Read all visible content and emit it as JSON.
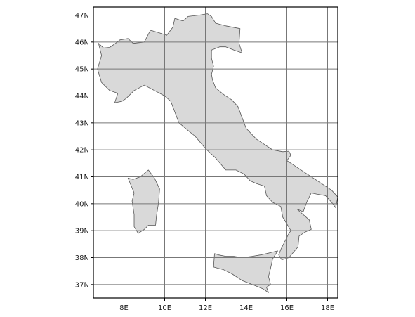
{
  "chart_data": {
    "type": "map",
    "region": "Italy",
    "projection": "equirectangular",
    "grid": true,
    "xlim": [
      6.5,
      18.5
    ],
    "ylim": [
      36.5,
      47.3
    ],
    "x_ticks": [
      {
        "value": 8,
        "label": "8E"
      },
      {
        "value": 10,
        "label": "10E"
      },
      {
        "value": 12,
        "label": "12E"
      },
      {
        "value": 14,
        "label": "14E"
      },
      {
        "value": 16,
        "label": "16E"
      },
      {
        "value": 18,
        "label": "18E"
      }
    ],
    "y_ticks": [
      {
        "value": 37,
        "label": "37N"
      },
      {
        "value": 38,
        "label": "38N"
      },
      {
        "value": 39,
        "label": "39N"
      },
      {
        "value": 40,
        "label": "40N"
      },
      {
        "value": 41,
        "label": "41N"
      },
      {
        "value": 42,
        "label": "42N"
      },
      {
        "value": 43,
        "label": "43N"
      },
      {
        "value": 44,
        "label": "44N"
      },
      {
        "value": 45,
        "label": "45N"
      },
      {
        "value": 46,
        "label": "46N"
      },
      {
        "value": 47,
        "label": "47N"
      }
    ],
    "colors": {
      "land_fill": "#d9d9d9",
      "land_stroke": "#555555",
      "grid": "#777777",
      "frame": "#000000"
    },
    "polygons": [
      {
        "id": "mainland",
        "coords": [
          [
            6.75,
            45.95
          ],
          [
            7.0,
            45.78
          ],
          [
            7.3,
            45.8
          ],
          [
            7.6,
            45.96
          ],
          [
            7.8,
            46.08
          ],
          [
            8.2,
            46.13
          ],
          [
            8.45,
            45.95
          ],
          [
            8.8,
            45.98
          ],
          [
            9.0,
            46.0
          ],
          [
            9.3,
            46.44
          ],
          [
            9.7,
            46.35
          ],
          [
            10.1,
            46.25
          ],
          [
            10.4,
            46.55
          ],
          [
            10.5,
            46.88
          ],
          [
            10.9,
            46.78
          ],
          [
            11.15,
            46.95
          ],
          [
            11.7,
            47.0
          ],
          [
            12.1,
            47.05
          ],
          [
            12.3,
            46.95
          ],
          [
            12.5,
            46.7
          ],
          [
            13.0,
            46.6
          ],
          [
            13.7,
            46.5
          ],
          [
            13.65,
            45.95
          ],
          [
            13.8,
            45.6
          ],
          [
            13.4,
            45.7
          ],
          [
            13.0,
            45.82
          ],
          [
            12.7,
            45.82
          ],
          [
            12.3,
            45.7
          ],
          [
            12.3,
            45.4
          ],
          [
            12.4,
            45.1
          ],
          [
            12.3,
            44.8
          ],
          [
            12.35,
            44.6
          ],
          [
            12.5,
            44.3
          ],
          [
            12.9,
            44.05
          ],
          [
            13.3,
            43.85
          ],
          [
            13.6,
            43.6
          ],
          [
            13.8,
            43.2
          ],
          [
            14.0,
            42.8
          ],
          [
            14.5,
            42.4
          ],
          [
            15.0,
            42.15
          ],
          [
            15.3,
            42.0
          ],
          [
            15.8,
            41.93
          ],
          [
            16.1,
            41.95
          ],
          [
            16.2,
            41.8
          ],
          [
            16.0,
            41.6
          ],
          [
            16.3,
            41.45
          ],
          [
            16.7,
            41.25
          ],
          [
            17.1,
            41.05
          ],
          [
            17.5,
            40.85
          ],
          [
            17.9,
            40.65
          ],
          [
            18.2,
            40.5
          ],
          [
            18.5,
            40.25
          ],
          [
            18.4,
            39.85
          ],
          [
            18.2,
            40.05
          ],
          [
            17.9,
            40.3
          ],
          [
            17.5,
            40.35
          ],
          [
            17.2,
            40.4
          ],
          [
            17.0,
            40.1
          ],
          [
            16.8,
            39.7
          ],
          [
            16.5,
            39.8
          ],
          [
            16.8,
            39.6
          ],
          [
            17.1,
            39.4
          ],
          [
            17.2,
            39.05
          ],
          [
            16.9,
            38.95
          ],
          [
            16.6,
            38.8
          ],
          [
            16.55,
            38.4
          ],
          [
            16.1,
            38.0
          ],
          [
            15.75,
            37.92
          ],
          [
            15.6,
            38.1
          ],
          [
            15.7,
            38.3
          ],
          [
            15.9,
            38.6
          ],
          [
            16.1,
            38.9
          ],
          [
            16.2,
            39.0
          ],
          [
            15.8,
            39.5
          ],
          [
            15.7,
            39.9
          ],
          [
            15.3,
            40.05
          ],
          [
            15.0,
            40.3
          ],
          [
            14.9,
            40.65
          ],
          [
            14.5,
            40.75
          ],
          [
            14.2,
            40.85
          ],
          [
            13.9,
            41.1
          ],
          [
            13.5,
            41.25
          ],
          [
            13.0,
            41.25
          ],
          [
            12.5,
            41.7
          ],
          [
            12.0,
            42.05
          ],
          [
            11.5,
            42.5
          ],
          [
            11.1,
            42.75
          ],
          [
            10.7,
            43.0
          ],
          [
            10.5,
            43.4
          ],
          [
            10.3,
            43.8
          ],
          [
            10.0,
            44.0
          ],
          [
            9.5,
            44.2
          ],
          [
            9.0,
            44.4
          ],
          [
            8.5,
            44.2
          ],
          [
            8.1,
            43.9
          ],
          [
            7.9,
            43.8
          ],
          [
            7.55,
            43.75
          ],
          [
            7.7,
            44.1
          ],
          [
            7.3,
            44.2
          ],
          [
            6.9,
            44.5
          ],
          [
            6.7,
            45.0
          ],
          [
            6.9,
            45.5
          ],
          [
            6.75,
            45.95
          ]
        ]
      },
      {
        "id": "sicily",
        "coords": [
          [
            12.45,
            38.15
          ],
          [
            12.65,
            38.1
          ],
          [
            13.0,
            38.05
          ],
          [
            13.4,
            38.05
          ],
          [
            13.8,
            38.0
          ],
          [
            14.3,
            38.05
          ],
          [
            14.7,
            38.1
          ],
          [
            15.0,
            38.15
          ],
          [
            15.55,
            38.25
          ],
          [
            15.3,
            37.95
          ],
          [
            15.2,
            37.6
          ],
          [
            15.1,
            37.3
          ],
          [
            15.2,
            37.0
          ],
          [
            15.0,
            36.9
          ],
          [
            15.1,
            36.7
          ],
          [
            14.8,
            36.85
          ],
          [
            14.3,
            37.0
          ],
          [
            13.8,
            37.15
          ],
          [
            13.3,
            37.4
          ],
          [
            12.9,
            37.55
          ],
          [
            12.4,
            37.65
          ],
          [
            12.45,
            38.15
          ]
        ]
      },
      {
        "id": "sardinia",
        "coords": [
          [
            8.2,
            40.95
          ],
          [
            8.45,
            40.9
          ],
          [
            8.8,
            41.0
          ],
          [
            9.2,
            41.25
          ],
          [
            9.5,
            40.95
          ],
          [
            9.75,
            40.55
          ],
          [
            9.7,
            40.05
          ],
          [
            9.6,
            39.55
          ],
          [
            9.55,
            39.2
          ],
          [
            9.2,
            39.2
          ],
          [
            9.0,
            39.05
          ],
          [
            8.7,
            38.9
          ],
          [
            8.5,
            39.15
          ],
          [
            8.5,
            39.6
          ],
          [
            8.4,
            40.1
          ],
          [
            8.5,
            40.4
          ],
          [
            8.2,
            40.95
          ]
        ]
      }
    ]
  }
}
